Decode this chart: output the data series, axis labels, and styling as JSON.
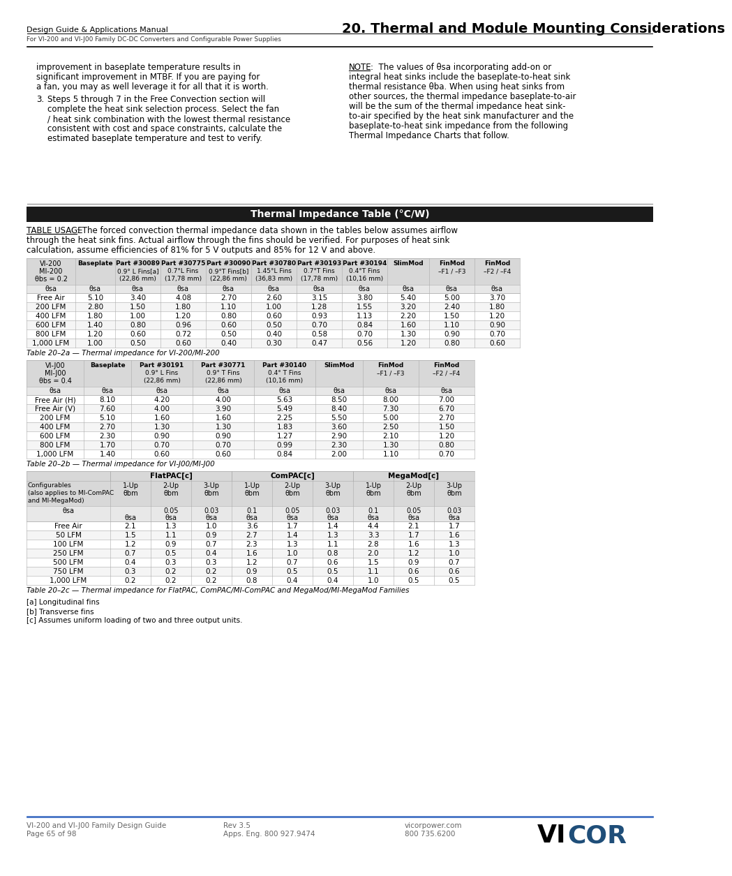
{
  "header_left": "Design Guide & Applications Manual",
  "header_subtitle": "For VI-200 and VI-J00 Family DC-DC Converters and Configurable Power Supplies",
  "header_right": "20. Thermal and Module Mounting Considerations",
  "footer_left1": "VI-200 and VI-J00 Family Design Guide",
  "footer_left2": "Page 65 of 98",
  "footer_mid1": "Rev 3.5",
  "footer_mid2": "Apps. Eng. 800 927.9474",
  "footer_right1": "vicorpower.com",
  "footer_right2": "800 735.6200",
  "body_left_col": [
    "improvement in baseplate temperature results in",
    "significant improvement in MTBF. If you are paying for",
    "a fan, you may as well leverage it for all that it is worth.",
    "",
    "3.  Steps 5 through 7 in the Free Convection section will",
    "    complete the heat sink selection process. Select the fan",
    "    / heat sink combination with the lowest thermal resistance",
    "    consistent with cost and space constraints, calculate the",
    "    estimated baseplate temperature and test to verify."
  ],
  "body_right_col": [
    "NOTE: The values of θsa incorporating add-on or",
    "integral heat sinks include the baseplate-to-heat sink",
    "thermal resistance θba. When using heat sinks from",
    "other sources, the thermal impedance baseplate-to-air",
    "will be the sum of the thermal impedance heat sink-",
    "to-air specified by the heat sink manufacturer and the",
    "baseplate-to-heat sink impedance from the following",
    "Thermal Impedance Charts that follow."
  ],
  "table_title": "Thermal Impedance Table (°C/W)",
  "table_usage": "TABLE USAGE: The forced convection thermal impedance data shown in the tables below assumes airflow\nthrough the heat sink fins. Actual airflow through the fins should be verified. For purposes of heat sink\ncalculation, assume efficiencies of 81% for 5 V outputs and 85% for 12 V and above.",
  "table2a_title": "Table 20–2a — Thermal impedance for VI-200/MI-200",
  "table2b_title": "Table 20–2b — Thermal impedance for VI-J00/MI-J00",
  "table2c_title": "Table 20–2c — Thermal impedance for FlatPAC, ComPAC/MI-ComPAC and MegaMod/MI-MegaMod Families",
  "footnotes": [
    "[a] Longitudinal fins",
    "[b] Transverse fins",
    "[c] Assumes uniform loading of two and three output units."
  ],
  "table2a": {
    "col_headers": [
      "VI-200\nMI-200\nθbs = 0.2",
      "Baseplate",
      "Part #30089\n0.9° L Fins[a]\n(22,86 mm)",
      "Part #30775\n0.7°L Fins\n(17,78 mm)",
      "Part #30090\n0.9°T Fins[b]\n(22,86 mm)",
      "Part #30780\n1.45°L Fins\n(36,83 mm)",
      "Part #30193\n0.7°T Fins\n(17,78 mm)",
      "Part #30194\n0.4°T Fins\n(10,16 mm)",
      "SlimMod",
      "FinMod\n–F1 / –F3",
      "FinMod\n–F2 / –F4"
    ],
    "subheader": [
      "θsa",
      "θsa",
      "θsa",
      "θsa",
      "θsa",
      "θsa",
      "θsa",
      "θsa",
      "θsa",
      "θsa",
      "θsa"
    ],
    "rows": [
      [
        "Free Air",
        "5.10",
        "3.40",
        "4.08",
        "2.70",
        "2.60",
        "3.15",
        "3.80",
        "5.40",
        "5.00",
        "3.70"
      ],
      [
        "200 LFM",
        "2.80",
        "1.50",
        "1.80",
        "1.10",
        "1.00",
        "1.28",
        "1.55",
        "3.20",
        "2.40",
        "1.80"
      ],
      [
        "400 LFM",
        "1.80",
        "1.00",
        "1.20",
        "0.80",
        "0.60",
        "0.93",
        "1.13",
        "2.20",
        "1.50",
        "1.20"
      ],
      [
        "600 LFM",
        "1.40",
        "0.80",
        "0.96",
        "0.60",
        "0.50",
        "0.70",
        "0.84",
        "1.60",
        "1.10",
        "0.90"
      ],
      [
        "800 LFM",
        "1.20",
        "0.60",
        "0.72",
        "0.50",
        "0.40",
        "0.58",
        "0.70",
        "1.30",
        "0.90",
        "0.70"
      ],
      [
        "1,000 LFM",
        "1.00",
        "0.50",
        "0.60",
        "0.40",
        "0.30",
        "0.47",
        "0.56",
        "1.20",
        "0.80",
        "0.60"
      ]
    ]
  },
  "table2b": {
    "col_headers": [
      "VI-J00\nMI-J00\nθbs = 0.4",
      "Baseplate",
      "Part #30191\n0.9° L Fins\n(22,86 mm)",
      "Part #30771\n0.9° T Fins\n(22,86 mm)",
      "Part #30140\n0.4° T Fins\n(10,16 mm)",
      "SlimMod",
      "FinMod\n–F1 / –F3",
      "FinMod\n–F2 / –F4"
    ],
    "subheader": [
      "θsa",
      "θsa",
      "θsa",
      "θsa",
      "θsa",
      "θsa",
      "θsa",
      "θsa"
    ],
    "rows": [
      [
        "Free Air (H)",
        "8.10",
        "4.20",
        "4.00",
        "5.63",
        "8.50",
        "8.00",
        "7.00"
      ],
      [
        "Free Air (V)",
        "7.60",
        "4.00",
        "3.90",
        "5.49",
        "8.40",
        "7.30",
        "6.70"
      ],
      [
        "200 LFM",
        "5.10",
        "1.60",
        "1.60",
        "2.25",
        "5.50",
        "5.00",
        "2.70"
      ],
      [
        "400 LFM",
        "2.70",
        "1.30",
        "1.30",
        "1.83",
        "3.60",
        "2.50",
        "1.50"
      ],
      [
        "600 LFM",
        "2.30",
        "0.90",
        "0.90",
        "1.27",
        "2.90",
        "2.10",
        "1.20"
      ],
      [
        "800 LFM",
        "1.70",
        "0.70",
        "0.70",
        "0.99",
        "2.30",
        "1.30",
        "0.80"
      ],
      [
        "1,000 LFM",
        "1.40",
        "0.60",
        "0.60",
        "0.84",
        "2.00",
        "1.10",
        "0.70"
      ]
    ]
  },
  "table2c": {
    "col_headers_top": [
      "",
      "FlatPAC[c]",
      "",
      "",
      "ComPAC[c]",
      "",
      "",
      "MegaMod[c]",
      "",
      ""
    ],
    "col_headers_mid": [
      "Configurables\n(also applies to MI-ComPAC\nand MI-MegaMod)",
      "1-Up\nθbm",
      "2-Up\nθbm",
      "3-Up\nθbm",
      "1-Up\nθbm",
      "2-Up\nθbm",
      "3-Up\nθbm",
      "1-Up\nθbm",
      "2-Up\nθbm",
      "3-Up\nθbm"
    ],
    "subrow_bm": [
      "",
      "0.05",
      "0.03",
      "0.1",
      "0.05",
      "0.03",
      "0.1",
      "0.05",
      "0.03"
    ],
    "subrow_sa": [
      "θsa",
      "θsa",
      "θsa",
      "θsa",
      "θsa",
      "θsa",
      "θsa",
      "θsa",
      "θsa"
    ],
    "rows": [
      [
        "Free Air",
        "2.1",
        "1.3",
        "1.0",
        "3.6",
        "1.7",
        "1.4",
        "4.4",
        "2.1",
        "1.7"
      ],
      [
        "50 LFM",
        "1.5",
        "1.1",
        "0.9",
        "2.7",
        "1.4",
        "1.3",
        "3.3",
        "1.7",
        "1.6"
      ],
      [
        "100 LFM",
        "1.2",
        "0.9",
        "0.7",
        "2.3",
        "1.3",
        "1.1",
        "2.8",
        "1.6",
        "1.3"
      ],
      [
        "250 LFM",
        "0.7",
        "0.5",
        "0.4",
        "1.6",
        "1.0",
        "0.8",
        "2.0",
        "1.2",
        "1.0"
      ],
      [
        "500 LFM",
        "0.4",
        "0.3",
        "0.3",
        "1.2",
        "0.7",
        "0.6",
        "1.5",
        "0.9",
        "0.7"
      ],
      [
        "750 LFM",
        "0.3",
        "0.2",
        "0.2",
        "0.9",
        "0.5",
        "0.5",
        "1.1",
        "0.6",
        "0.6"
      ],
      [
        "1,000 LFM",
        "0.2",
        "0.2",
        "0.2",
        "0.8",
        "0.4",
        "0.4",
        "1.0",
        "0.5",
        "0.5"
      ]
    ]
  }
}
